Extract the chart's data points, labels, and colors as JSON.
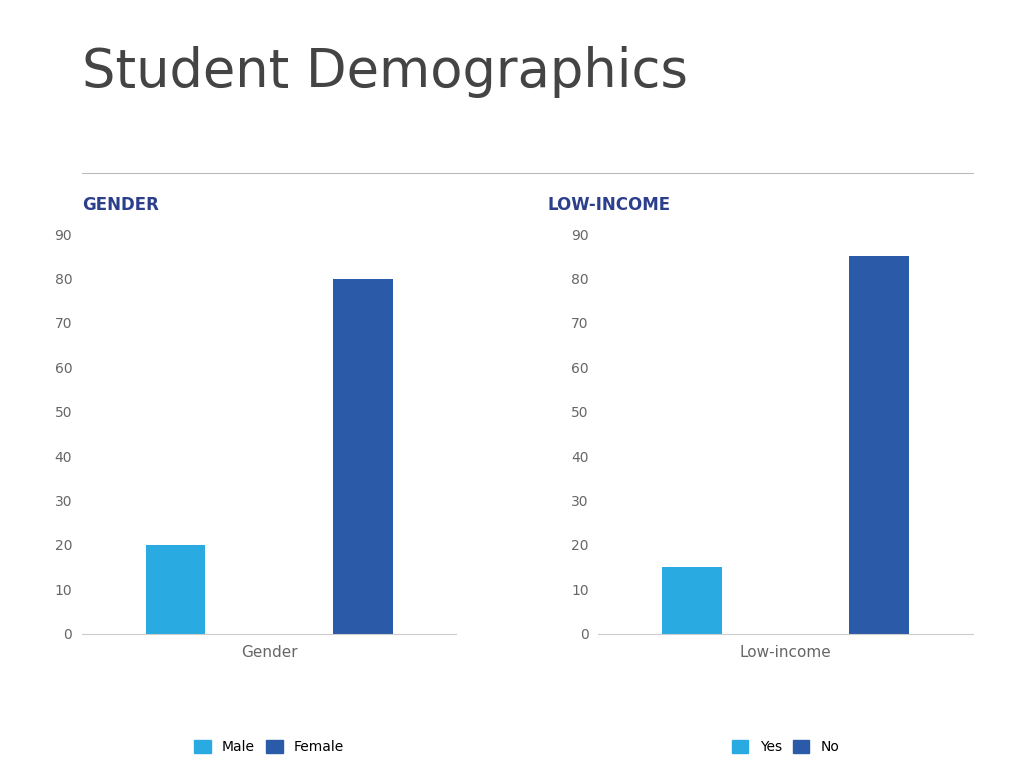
{
  "title": "Student Demographics",
  "title_color": "#444444",
  "title_fontsize": 38,
  "background_color": "#ffffff",
  "footer_color": "#2196C4",
  "divider_color": "#bbbbbb",
  "gender_label": "GENDER",
  "gender_label_color": "#2B3F8C",
  "gender_categories": [
    "Male",
    "Female"
  ],
  "gender_values": [
    20,
    80
  ],
  "gender_colors": [
    "#29ABE2",
    "#2B5BA8"
  ],
  "gender_xlabel": "Gender",
  "gender_ylim": [
    0,
    90
  ],
  "gender_yticks": [
    0,
    10,
    20,
    30,
    40,
    50,
    60,
    70,
    80,
    90
  ],
  "gender_legend": [
    "Male",
    "Female"
  ],
  "income_label": "LOW-INCOME",
  "income_label_color": "#2B3F8C",
  "income_categories": [
    "Yes",
    "No"
  ],
  "income_values": [
    15,
    85
  ],
  "income_colors": [
    "#29ABE2",
    "#2B5BA8"
  ],
  "income_xlabel": "Low-income",
  "income_ylim": [
    0,
    90
  ],
  "income_yticks": [
    0,
    10,
    20,
    30,
    40,
    50,
    60,
    70,
    80,
    90
  ],
  "income_legend": [
    "Yes",
    "No"
  ]
}
